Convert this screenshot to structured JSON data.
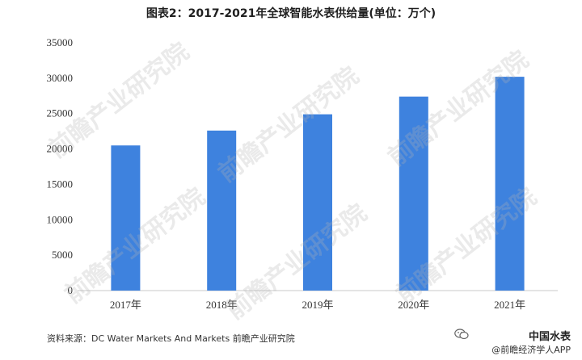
{
  "title": "图表2：2017-2021年全球智能水表供给量(单位：万个)",
  "source": "资料来源：DC Water Markets And Markets 前瞻产业研究院",
  "brand": {
    "name": "中国水表",
    "sub": "@前瞻经济学人APP"
  },
  "watermark": "前瞻产业研究院",
  "colors": {
    "bar": "#3e82de",
    "axis": "#c8c8c8"
  },
  "chart_data": {
    "type": "bar",
    "categories": [
      "2017年",
      "2018年",
      "2019年",
      "2020年",
      "2021年"
    ],
    "values": [
      20500,
      22600,
      24900,
      27400,
      30200
    ],
    "title": "图表2：2017-2021年全球智能水表供给量(单位：万个)",
    "xlabel": "",
    "ylabel": "",
    "ylim": [
      0,
      35000
    ],
    "yticks": [
      0,
      5000,
      10000,
      15000,
      20000,
      25000,
      30000,
      35000
    ],
    "grid": false,
    "legend": "none"
  }
}
